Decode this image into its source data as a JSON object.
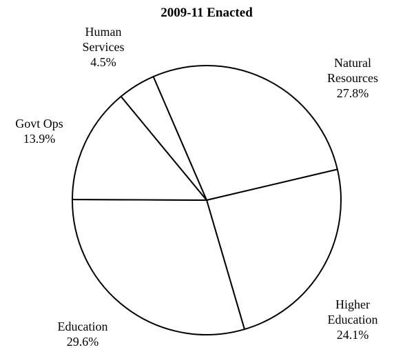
{
  "chart_data": {
    "type": "pie",
    "title": "2009-11 Enacted",
    "categories": [
      "Natural\nResources",
      "Higher\nEducation",
      "Education",
      "Govt Ops",
      "Human\nServices"
    ],
    "values": [
      27.8,
      24.1,
      29.6,
      13.9,
      4.5
    ],
    "value_labels": [
      "27.8%",
      "24.1%",
      "29.6%",
      "13.9%",
      "4.5%"
    ],
    "color": "#ffffff"
  }
}
